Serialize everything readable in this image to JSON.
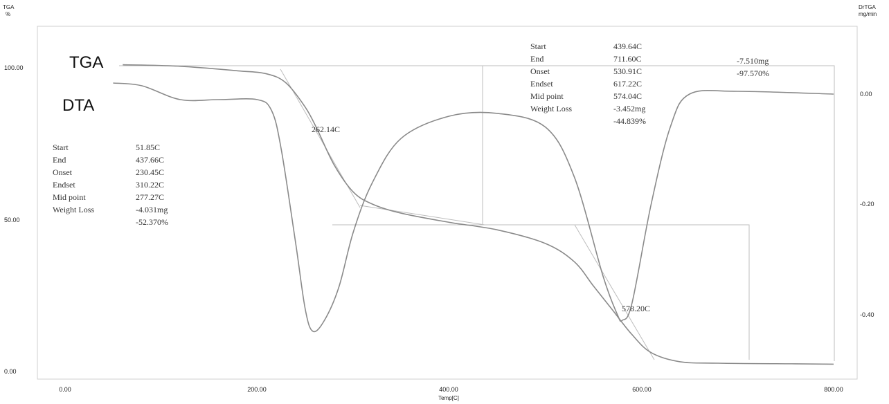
{
  "chart_data": {
    "type": "line",
    "xlabel": "Temp[C]",
    "x_ticks": [
      "0.00",
      "200.00",
      "400.00",
      "600.00",
      "800.00"
    ],
    "xlim": [
      0,
      800
    ],
    "left_axis": {
      "label_line1": "TGA",
      "label_line2": "%",
      "ticks": [
        "0.00",
        "50.00",
        "100.00"
      ],
      "ylim": [
        -2,
        115
      ]
    },
    "right_axis": {
      "label_line1": "DrTGA",
      "label_line2": "mg/min",
      "ticks": [
        "0.00",
        "-0.20",
        "-0.40"
      ],
      "ylim": [
        -0.53,
        0.14
      ]
    },
    "curve_labels": [
      "TGA",
      "DTA"
    ],
    "series": [
      {
        "name": "TGA",
        "axis": "left",
        "x": [
          60,
          120,
          180,
          210,
          230,
          250,
          262,
          280,
          300,
          320,
          350,
          400,
          450,
          500,
          530,
          550,
          570,
          590,
          610,
          640,
          680,
          760,
          800
        ],
        "y": [
          101,
          100.5,
          99,
          98,
          95,
          87,
          80,
          68,
          59,
          55,
          52,
          49,
          46.5,
          42,
          36,
          28,
          20,
          12,
          6,
          3,
          2.5,
          2.3,
          2.2
        ]
      },
      {
        "name": "DTA",
        "axis": "right",
        "x": [
          50,
          80,
          120,
          160,
          200,
          215,
          225,
          240,
          250,
          258,
          270,
          285,
          300,
          320,
          350,
          400,
          450,
          500,
          530,
          560,
          575,
          580,
          590,
          610,
          630,
          650,
          700,
          800
        ],
        "y": [
          0.02,
          0.015,
          -0.01,
          -0.01,
          -0.01,
          -0.03,
          -0.1,
          -0.27,
          -0.39,
          -0.43,
          -0.41,
          -0.35,
          -0.25,
          -0.16,
          -0.08,
          -0.04,
          -0.035,
          -0.06,
          -0.15,
          -0.33,
          -0.4,
          -0.41,
          -0.38,
          -0.2,
          -0.06,
          0.0,
          0.005,
          0.0
        ]
      }
    ],
    "annotations": {
      "peak1": "262.14C",
      "peak2": "578.20C",
      "step1": [
        {
          "label": "Start",
          "value": "51.85C"
        },
        {
          "label": "End",
          "value": "437.66C"
        },
        {
          "label": "Onset",
          "value": "230.45C"
        },
        {
          "label": "Endset",
          "value": "310.22C"
        },
        {
          "label": "Mid point",
          "value": "277.27C"
        },
        {
          "label": "Weight Loss",
          "value": "-4.031mg"
        },
        {
          "label": "",
          "value": "-52.370%"
        }
      ],
      "step2": [
        {
          "label": "Start",
          "value": "439.64C"
        },
        {
          "label": "End",
          "value": "711.60C"
        },
        {
          "label": "Onset",
          "value": "530.91C"
        },
        {
          "label": "Endset",
          "value": "617.22C"
        },
        {
          "label": "Mid point",
          "value": "574.04C"
        },
        {
          "label": "Weight Loss",
          "value": "-3.452mg"
        },
        {
          "label": "",
          "value": "-44.839%"
        }
      ],
      "total_mass": "-7.510mg",
      "total_percent": "-97.570%"
    }
  }
}
